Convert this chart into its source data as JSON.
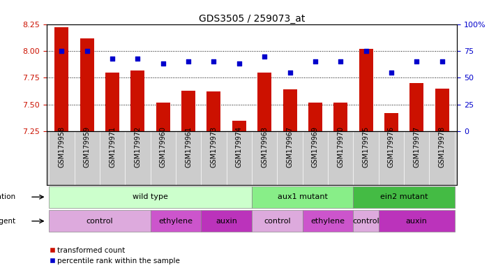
{
  "title": "GDS3505 / 259073_at",
  "samples": [
    "GSM179958",
    "GSM179959",
    "GSM179971",
    "GSM179972",
    "GSM179960",
    "GSM179961",
    "GSM179973",
    "GSM179974",
    "GSM179963",
    "GSM179967",
    "GSM179969",
    "GSM179970",
    "GSM179975",
    "GSM179976",
    "GSM179977",
    "GSM179978"
  ],
  "transformed_count": [
    8.22,
    8.12,
    7.8,
    7.82,
    7.52,
    7.63,
    7.62,
    7.35,
    7.8,
    7.64,
    7.52,
    7.52,
    8.02,
    7.42,
    7.7,
    7.65
  ],
  "percentile_rank": [
    75,
    75,
    68,
    68,
    63,
    65,
    65,
    63,
    70,
    55,
    65,
    65,
    75,
    55,
    65,
    65
  ],
  "ylim_left": [
    7.25,
    8.25
  ],
  "ylim_right": [
    0,
    100
  ],
  "yticks_left": [
    7.25,
    7.5,
    7.75,
    8.0,
    8.25
  ],
  "yticks_right": [
    0,
    25,
    50,
    75,
    100
  ],
  "bar_color": "#cc1100",
  "dot_color": "#0000cc",
  "bar_width": 0.55,
  "grid_lines": [
    7.5,
    7.75,
    8.0
  ],
  "genotype_groups": [
    {
      "label": "wild type",
      "start": 0,
      "end": 7,
      "color": "#ccffcc"
    },
    {
      "label": "aux1 mutant",
      "start": 8,
      "end": 11,
      "color": "#88ee88"
    },
    {
      "label": "ein2 mutant",
      "start": 12,
      "end": 15,
      "color": "#44bb44"
    }
  ],
  "agent_groups": [
    {
      "label": "control",
      "start": 0,
      "end": 3,
      "color": "#ddaadd"
    },
    {
      "label": "ethylene",
      "start": 4,
      "end": 5,
      "color": "#cc55cc"
    },
    {
      "label": "auxin",
      "start": 6,
      "end": 7,
      "color": "#bb33bb"
    },
    {
      "label": "control",
      "start": 8,
      "end": 9,
      "color": "#ddaadd"
    },
    {
      "label": "ethylene",
      "start": 10,
      "end": 11,
      "color": "#cc55cc"
    },
    {
      "label": "control",
      "start": 12,
      "end": 12,
      "color": "#ddaadd"
    },
    {
      "label": "auxin",
      "start": 13,
      "end": 15,
      "color": "#bb33bb"
    }
  ],
  "tick_bg_color": "#cccccc",
  "legend_labels": [
    "transformed count",
    "percentile rank within the sample"
  ],
  "legend_colors": [
    "#cc1100",
    "#0000cc"
  ]
}
